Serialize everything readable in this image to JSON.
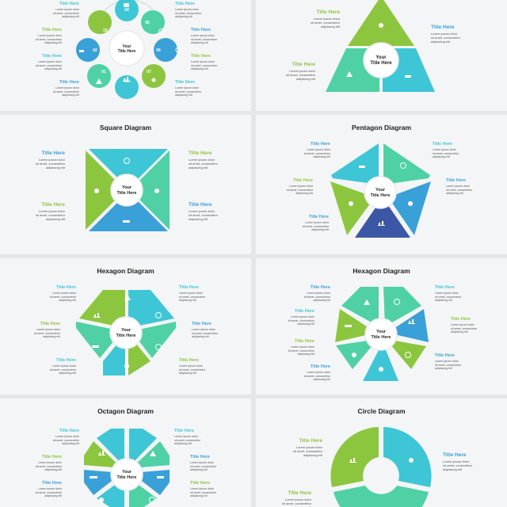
{
  "colors": {
    "green": "#8cc63f",
    "teal": "#3ec6d6",
    "blue": "#3aa0d8",
    "mint": "#4fd1a5",
    "navy": "#3b57a5",
    "white": "#ffffff"
  },
  "center": {
    "line1": "Your",
    "line2": "Title Here"
  },
  "lorem": "Lorem ipsum dolor\nsit amet, consectetur\nadipiscing elit",
  "label_title": "Title Here",
  "panels": {
    "p1": {
      "numbers": [
        "01",
        "02",
        "03",
        "04",
        "05",
        "06",
        "07",
        "08"
      ]
    },
    "p2": {},
    "p3": {
      "title": "Square Diagram"
    },
    "p4": {
      "title": "Pentagon Diagram"
    },
    "p5": {
      "title": "Hexagon Diagram"
    },
    "p6": {
      "title": "Hexagon Diagram"
    },
    "p7": {
      "title": "Octagon Diagram"
    },
    "p8": {
      "title": "Circle Diagram"
    }
  },
  "icons": [
    "people-icon",
    "tree-icon",
    "chart-icon",
    "cube-icon",
    "lightbulb-icon",
    "hand-coin-icon",
    "target-icon",
    "clock-icon",
    "handshake-icon",
    "wrench-icon"
  ]
}
